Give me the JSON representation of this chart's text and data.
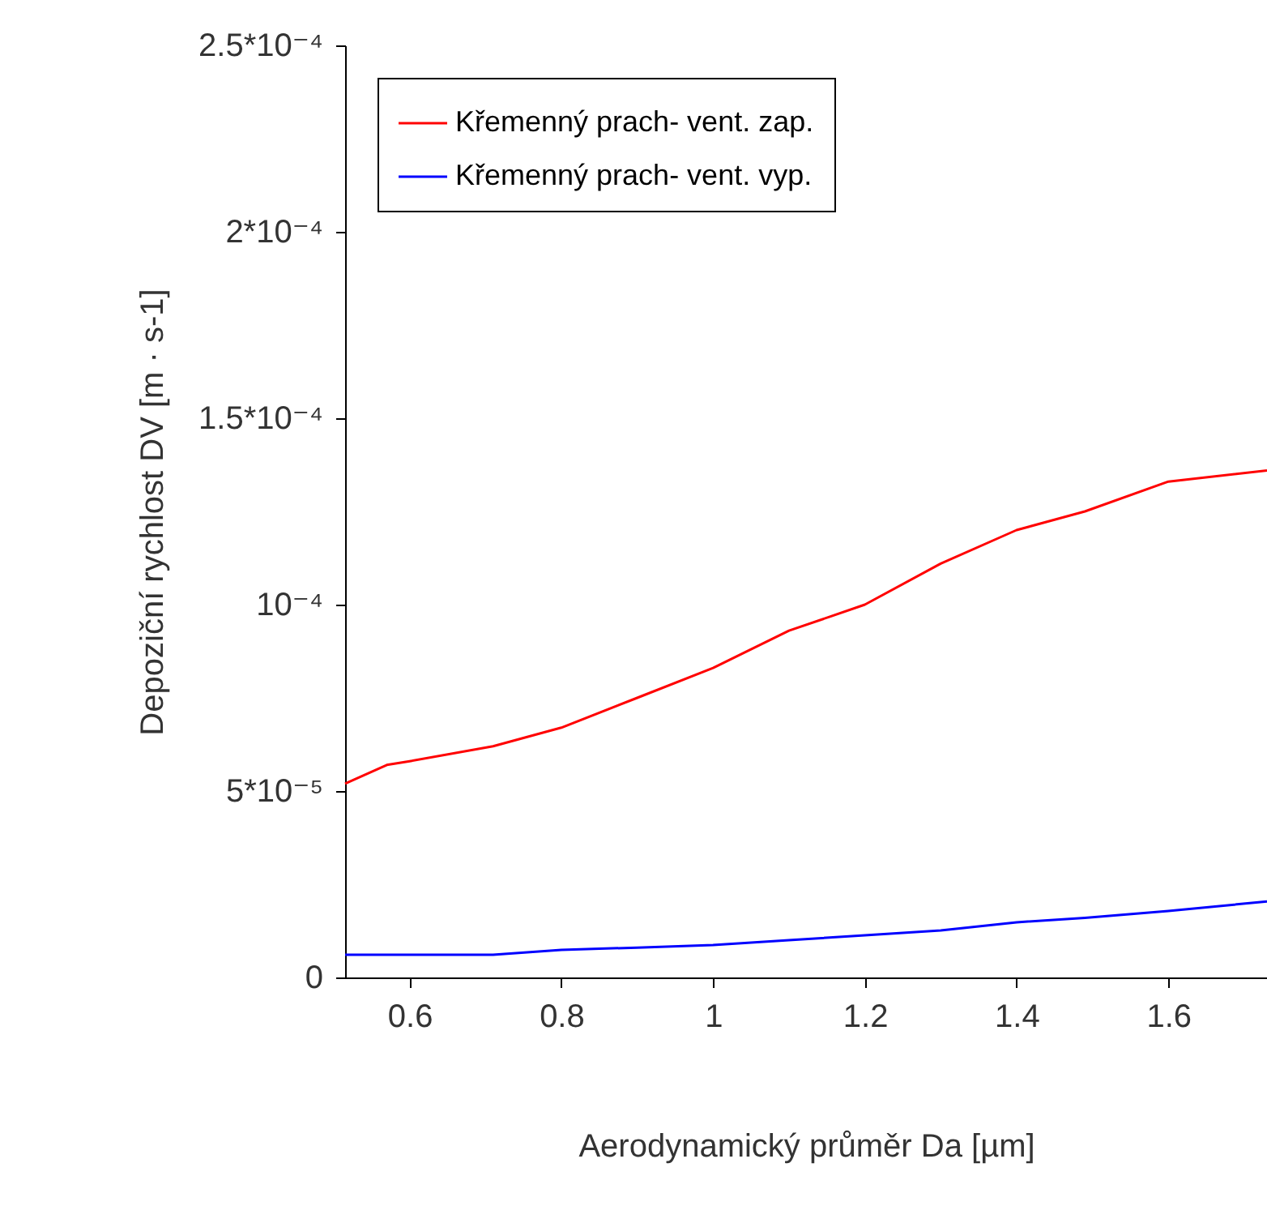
{
  "chart_data": {
    "type": "line",
    "xlabel": "Aerodynamický průměr Da [µm]",
    "ylabel": "Depoziční rychlost DV [m · s-1]",
    "x": [
      0.515,
      0.57,
      0.6,
      0.71,
      0.8,
      0.9,
      1.0,
      1.1,
      1.2,
      1.3,
      1.4,
      1.49,
      1.6,
      1.73
    ],
    "series": [
      {
        "name": "Křemenný prach- vent. zap.",
        "color": "#ff0000",
        "values": [
          5.2e-05,
          5.7e-05,
          5.8e-05,
          6.2e-05,
          6.7e-05,
          7.5e-05,
          8.3e-05,
          9.3e-05,
          0.0001,
          0.000111,
          0.00012,
          0.000125,
          0.000133,
          0.000136
        ]
      },
      {
        "name": "Křemenný prach- vent. vyp.",
        "color": "#0000ff",
        "values": [
          6.1e-06,
          6.1e-06,
          6.1e-06,
          6.1e-06,
          7.4e-06,
          8e-06,
          8.7e-06,
          1e-05,
          1.13e-05,
          1.26e-05,
          1.48e-05,
          1.6e-05,
          1.78e-05,
          2.04e-05
        ]
      }
    ],
    "xlim": [
      0.515,
      1.73
    ],
    "xticks": [
      0.6,
      0.8,
      1,
      1.2,
      1.4,
      1.6
    ],
    "ylim": [
      0,
      0.00025
    ],
    "yticks": [
      0,
      {
        "value": 5e-05,
        "label": "5*10⁻⁵"
      },
      {
        "value": 0.0001,
        "label": "10⁻⁴"
      },
      {
        "value": 0.00015,
        "label": "1.5*10⁻⁴"
      },
      {
        "value": 0.0002,
        "label": "2*10⁻⁴"
      },
      {
        "value": 0.00025,
        "label": "2.5*10⁻⁴"
      }
    ],
    "legend": "top left",
    "grid": false,
    "line_style": "solid",
    "marker": "none"
  }
}
